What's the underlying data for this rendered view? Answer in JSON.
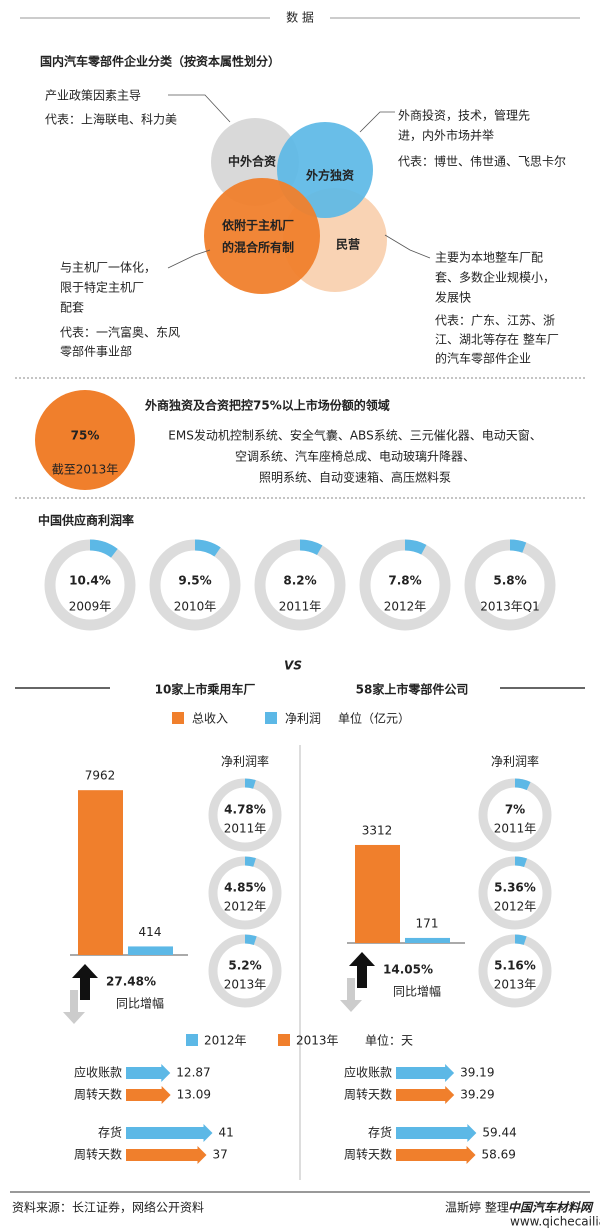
{
  "header": {
    "tag": "数 据"
  },
  "classification": {
    "title": "国内汽车零部件企业分类（按资本属性划分）",
    "circles": [
      [
        "中外合资"
      ],
      [
        "外方独资"
      ],
      [
        "依附于主机厂",
        "的混合所有制"
      ],
      [
        "民营"
      ]
    ],
    "notes": [
      {
        "text": [
          "产业政策因素主导"
        ],
        "example": [
          "代表：上海联电、科力美"
        ]
      },
      {
        "text": [
          "外商投资，技术，管理先",
          "进，内外市场并举"
        ],
        "example": [
          "代表：博世、伟世通、飞思卡尔"
        ]
      },
      {
        "text": [
          "与主机厂一体化，",
          "限于特定主机厂",
          "配套"
        ],
        "example": [
          "代表：一汽富奥、东风",
          "零部件事业部"
        ]
      },
      {
        "text": [
          "主要为本地整车厂配",
          "套、多数企业规模小，",
          "发展快"
        ],
        "example": [
          "代表：广东、江苏、浙",
          "江、湖北等存在  整车厂",
          "的汽车零部件企业"
        ]
      }
    ]
  },
  "market": {
    "share": "75%",
    "as_of": "截至2013年",
    "title": "外商独资及合资把控75%以上市场份额的领域",
    "fields": [
      "EMS发动机控制系统、安全气囊、ABS系统、三元催化器、电动天窗、",
      "空调系统、汽车座椅总成、电动玻璃升降器、",
      "照明系统、自动变速箱、高压燃料泵"
    ]
  },
  "profit_margin": {
    "title": "中国供应商利润率",
    "items": [
      {
        "value": 10.4,
        "label": "10.4%",
        "year": "2009年"
      },
      {
        "value": 9.5,
        "label": "9.5%",
        "year": "2010年"
      },
      {
        "value": 8.2,
        "label": "8.2%",
        "year": "2011年"
      },
      {
        "value": 7.8,
        "label": "7.8%",
        "year": "2012年"
      },
      {
        "value": 5.8,
        "label": "5.8%",
        "year": "2013年Q1"
      }
    ]
  },
  "comparison": {
    "left_title": "10家上市乘用车厂",
    "vs": "VS",
    "right_title": "58家上市零部件公司",
    "legend": {
      "revenue": "总收入",
      "profit": "净利润",
      "unit": "单位（亿元）"
    },
    "panels": [
      {
        "revenue": 7962,
        "profit": 414,
        "growth": "27.48%",
        "growth_label": "同比增幅",
        "margin_title": "净利润率",
        "margins": [
          {
            "value": 4.78,
            "label": "4.78%",
            "year": "2011年"
          },
          {
            "value": 4.85,
            "label": "4.85%",
            "year": "2012年"
          },
          {
            "value": 5.2,
            "label": "5.2%",
            "year": "2013年"
          }
        ]
      },
      {
        "revenue": 3312,
        "profit": 171,
        "growth": "14.05%",
        "growth_label": "同比增幅",
        "margin_title": "净利润率",
        "margins": [
          {
            "value": 7,
            "label": "7%",
            "year": "2011年"
          },
          {
            "value": 5.36,
            "label": "5.36%",
            "year": "2012年"
          },
          {
            "value": 5.16,
            "label": "5.16%",
            "year": "2013年"
          }
        ]
      }
    ]
  },
  "turnover": {
    "legend": {
      "y2012": "2012年",
      "y2013": "2013年",
      "unit": "单位：天"
    },
    "panels": [
      {
        "rows": [
          {
            "label": [
              "应收账款",
              "周转天数"
            ],
            "values": [
              12.87,
              13.09
            ]
          },
          {
            "label": [
              "存货",
              "周转天数"
            ],
            "values": [
              41,
              37
            ]
          }
        ]
      },
      {
        "rows": [
          {
            "label": [
              "应收账款",
              "周转天数"
            ],
            "values": [
              39.19,
              39.29
            ]
          },
          {
            "label": [
              "存货",
              "周转天数"
            ],
            "values": [
              59.44,
              58.69
            ]
          }
        ]
      }
    ]
  },
  "footer": {
    "source": "资料来源：长江证券，网络公开资料",
    "author": "温斯婷 整理",
    "watermark": "中国汽车材料网",
    "url": "www.qichecailiao.com"
  }
}
